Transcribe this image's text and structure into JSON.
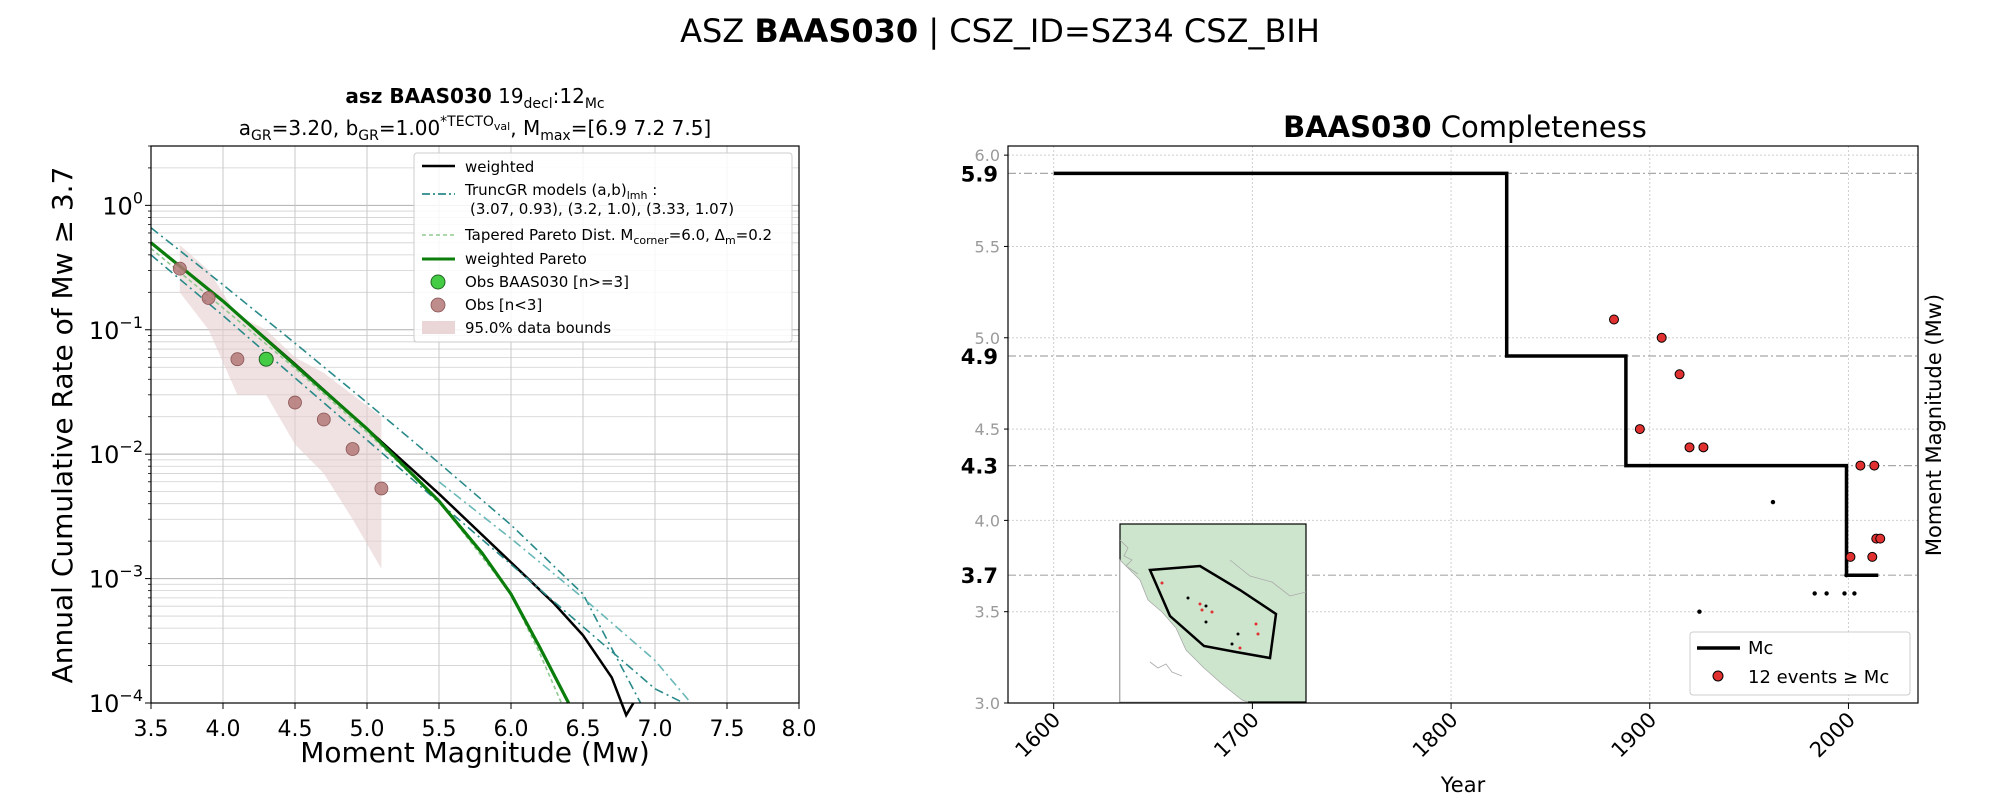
{
  "figure": {
    "title_prefix": "ASZ ",
    "title_bold": "BAAS030",
    "title_suffix": " | CSZ_ID=SZ34 CSZ_BIH"
  },
  "left_panel": {
    "title_line1_bold": "asz BAAS030",
    "title_line1_rest": "  19",
    "title_line1_sub1": "decl",
    "title_line1_mid": ":12",
    "title_line1_sub2": "Mc",
    "title_line2_a": "a",
    "title_line2_a_sub": "GR",
    "title_line2_a_val": "=3.20,  b",
    "title_line2_b_sub": "GR",
    "title_line2_b_val": "=1.00",
    "title_line2_sup": "*TECTO",
    "title_line2_sup_sub": "val",
    "title_line2_m": ", M",
    "title_line2_m_sub": "max",
    "title_line2_m_val": "=[6.9 7.2 7.5]",
    "legend": {
      "weighted": "weighted",
      "truncgr_line1": "TruncGR models (a,b)",
      "truncgr_sub": "lmh",
      "truncgr_colon": " :",
      "truncgr_line2": "(3.07, 0.93), (3.2, 1.0), (3.33, 1.07)",
      "tapered_a": "Tapered Pareto Dist. M",
      "tapered_sub": "corner",
      "tapered_b": "=6.0, Δ",
      "tapered_sub2": "m",
      "tapered_c": "=0.2",
      "weighted_pareto": "weighted Pareto",
      "obs_main": "Obs BAAS030 [n>=3]",
      "obs_small": "Obs [n<3]",
      "bounds": "95.0% data bounds"
    }
  },
  "right_panel": {
    "title_bold": "BAAS030",
    "title_rest": " Completeness",
    "legend": {
      "mc": "Mc",
      "events": "12 events ≥  Mc"
    },
    "mc_labels": [
      "5.9",
      "4.9",
      "4.3",
      "3.7"
    ]
  },
  "chart_data": [
    {
      "type": "line",
      "title": "asz BAAS030 19decl:12Mc / aGR=3.20, bGR=1.00*TECTOval, Mmax=[6.9 7.2 7.5]",
      "xlabel": "Moment Magnitude (Mw)",
      "ylabel": "Annual Cumulative Rate of Mw  ≥  3.7",
      "xlim": [
        3.5,
        8.0
      ],
      "ylim": [
        0.0001,
        3.0
      ],
      "yscale": "log",
      "xticks": [
        3.5,
        4.0,
        4.5,
        5.0,
        5.5,
        6.0,
        6.5,
        7.0,
        7.5,
        8.0
      ],
      "xtick_labels": [
        "3.5",
        "4.0",
        "4.5",
        "5.0",
        "5.5",
        "6.0",
        "6.5",
        "7.0",
        "7.5",
        "8.0"
      ],
      "yticks": [
        0.0001,
        0.001,
        0.01,
        0.1,
        1
      ],
      "ytick_labels": [
        {
          "base": "10",
          "exp": "−4"
        },
        {
          "base": "10",
          "exp": "−3"
        },
        {
          "base": "10",
          "exp": "−2"
        },
        {
          "base": "10",
          "exp": "−1"
        },
        {
          "base": "10",
          "exp": "0"
        }
      ],
      "grid": true,
      "legend_position": "top-right",
      "series": [
        {
          "name": "weighted",
          "style": "solid",
          "color": "#000000",
          "x": [
            3.5,
            4.0,
            4.5,
            5.0,
            5.5,
            6.0,
            6.3,
            6.5,
            6.7,
            6.8,
            6.85
          ],
          "y": [
            0.5,
            0.17,
            0.053,
            0.016,
            0.0048,
            0.00135,
            0.00063,
            0.00035,
            0.00016,
            8e-05,
            0.0001
          ]
        },
        {
          "name": "TruncGR models",
          "style": "dashdot",
          "color": "#2a8a8a",
          "x": [
            3.5,
            4.0,
            4.5,
            5.0,
            5.5,
            6.0,
            6.5,
            6.9
          ],
          "y": [
            0.66,
            0.23,
            0.078,
            0.026,
            0.0085,
            0.0027,
            0.00075,
            0.0001
          ]
        },
        {
          "name": "",
          "style": "dashdot",
          "color": "#2a8a8a",
          "x": [
            3.5,
            4.0,
            4.5,
            5.0,
            5.5,
            6.0,
            6.5,
            7.0,
            7.2
          ],
          "y": [
            0.4,
            0.13,
            0.041,
            0.013,
            0.0041,
            0.0013,
            0.00041,
            0.00013,
            0.0001
          ]
        },
        {
          "name": "",
          "style": "dashdot",
          "color": "#6ab8b8",
          "x": [
            5.5,
            6.0,
            6.5,
            7.0,
            7.25
          ],
          "y": [
            0.006,
            0.0021,
            0.0007,
            0.00022,
            0.0001
          ]
        },
        {
          "name": "Tapered Pareto Dist.",
          "style": "dashed",
          "color": "#90c890",
          "x": [
            3.5,
            4.0,
            4.5,
            5.0,
            5.5,
            6.0,
            6.2,
            6.35
          ],
          "y": [
            0.45,
            0.15,
            0.049,
            0.015,
            0.0042,
            0.00075,
            0.00025,
            0.0001
          ]
        },
        {
          "name": "weighted Pareto",
          "style": "solid",
          "color": "#0a7d0a",
          "x": [
            3.5,
            4.0,
            4.5,
            5.0,
            5.5,
            5.8,
            6.0,
            6.2,
            6.4
          ],
          "y": [
            0.5,
            0.17,
            0.052,
            0.016,
            0.0042,
            0.0016,
            0.00075,
            0.00028,
            0.0001
          ]
        }
      ],
      "observations": {
        "obs_main": {
          "name": "Obs BAAS030 [n>=3]",
          "color": "#44cc44",
          "x": [
            4.3
          ],
          "y": [
            0.058
          ]
        },
        "obs_small": {
          "name": "Obs [n<3]",
          "color": "#b47878",
          "x": [
            3.7,
            3.9,
            4.1,
            4.5,
            4.7,
            4.9,
            5.1
          ],
          "y": [
            0.31,
            0.18,
            0.058,
            0.026,
            0.019,
            0.011,
            0.0053
          ]
        }
      },
      "bounds": {
        "name": "95.0% data bounds",
        "x": [
          3.7,
          3.9,
          4.1,
          4.3,
          4.5,
          4.7,
          4.9,
          5.1
        ],
        "upper": [
          0.48,
          0.3,
          0.13,
          0.1,
          0.06,
          0.045,
          0.03,
          0.02
        ],
        "lower": [
          0.2,
          0.1,
          0.03,
          0.03,
          0.012,
          0.007,
          0.003,
          0.0012
        ]
      }
    },
    {
      "type": "scatter",
      "title": "BAAS030 Completeness",
      "xlabel": "Year",
      "ylabel": "Moment Magnitude (Mw)",
      "xlim": [
        1577,
        2035
      ],
      "ylim": [
        3.0,
        6.05
      ],
      "xticks": [
        1600,
        1700,
        1800,
        1900,
        2000
      ],
      "xtick_labels": [
        "1600",
        "1700",
        "1800",
        "1900",
        "2000"
      ],
      "yticks": [
        3.0,
        3.5,
        4.0,
        4.5,
        5.0,
        5.5,
        6.0
      ],
      "ytick_labels": [
        "3.0",
        "3.5",
        "4.0",
        "4.5",
        "5.0",
        "5.5",
        "6.0"
      ],
      "grid": true,
      "legend_position": "bottom-right",
      "mc_levels": [
        5.9,
        4.9,
        4.3,
        3.7
      ],
      "mc_step": {
        "name": "Mc",
        "x": [
          1600,
          1828,
          1828,
          1888,
          1888,
          1999,
          1999,
          2015
        ],
        "y": [
          5.9,
          5.9,
          4.9,
          4.9,
          4.3,
          4.3,
          3.7,
          3.7
        ]
      },
      "events": {
        "name": "12 events ≥ Mc",
        "x": [
          1882,
          1895,
          1906,
          1915,
          1920,
          1927,
          2001,
          2006,
          2012,
          2013,
          2014,
          2016
        ],
        "y": [
          5.1,
          4.5,
          5.0,
          4.8,
          4.4,
          4.4,
          3.8,
          4.3,
          3.8,
          4.3,
          3.9,
          3.9
        ]
      },
      "small_events": {
        "x": [
          1962,
          1925,
          1983,
          1989,
          1998,
          2003,
          1999
        ],
        "y": [
          4.1,
          3.5,
          3.6,
          3.6,
          3.6,
          3.6,
          3.7
        ]
      }
    }
  ]
}
